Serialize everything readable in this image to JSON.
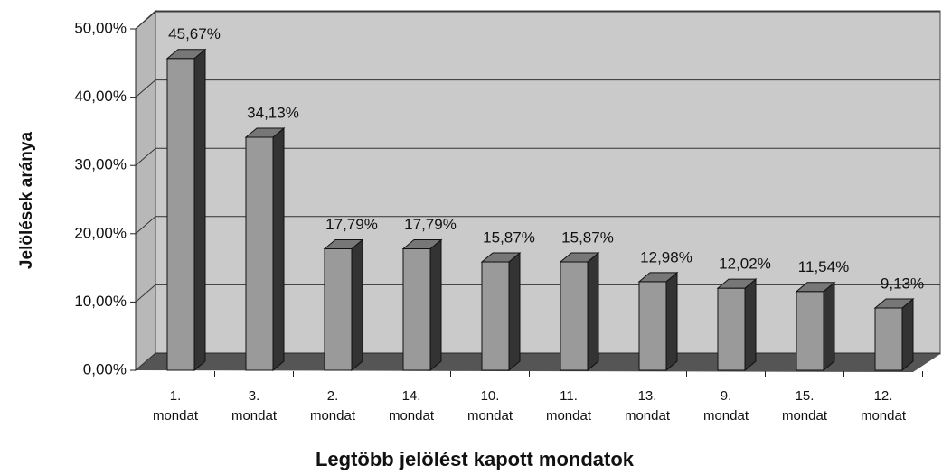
{
  "chart_data": {
    "type": "bar",
    "categories": [
      "1. mondat",
      "3. mondat",
      "2. mondat",
      "14. mondat",
      "10. mondat",
      "11. mondat",
      "13. mondat",
      "9. mondat",
      "15. mondat",
      "12. mondat"
    ],
    "values": [
      45.67,
      34.13,
      17.79,
      17.79,
      15.87,
      15.87,
      12.98,
      12.02,
      11.54,
      9.13
    ],
    "value_labels": [
      "45,67%",
      "34,13%",
      "17,79%",
      "17,79%",
      "15,87%",
      "15,87%",
      "12,98%",
      "12,02%",
      "11,54%",
      "9,13%"
    ],
    "color": "#9a9a9a",
    "ylim": [
      0,
      50
    ],
    "yticks": [
      {
        "value": 0,
        "label": "0,00%"
      },
      {
        "value": 10,
        "label": "10,00%"
      },
      {
        "value": 20,
        "label": "20,00%"
      },
      {
        "value": 30,
        "label": "30,00%"
      },
      {
        "value": 40,
        "label": "40,00%"
      },
      {
        "value": 50,
        "label": "50,00%"
      }
    ],
    "grid": true,
    "y_label": "Jelölések aránya",
    "x_label": "Legtöbb jelölést kapott mondatok"
  }
}
